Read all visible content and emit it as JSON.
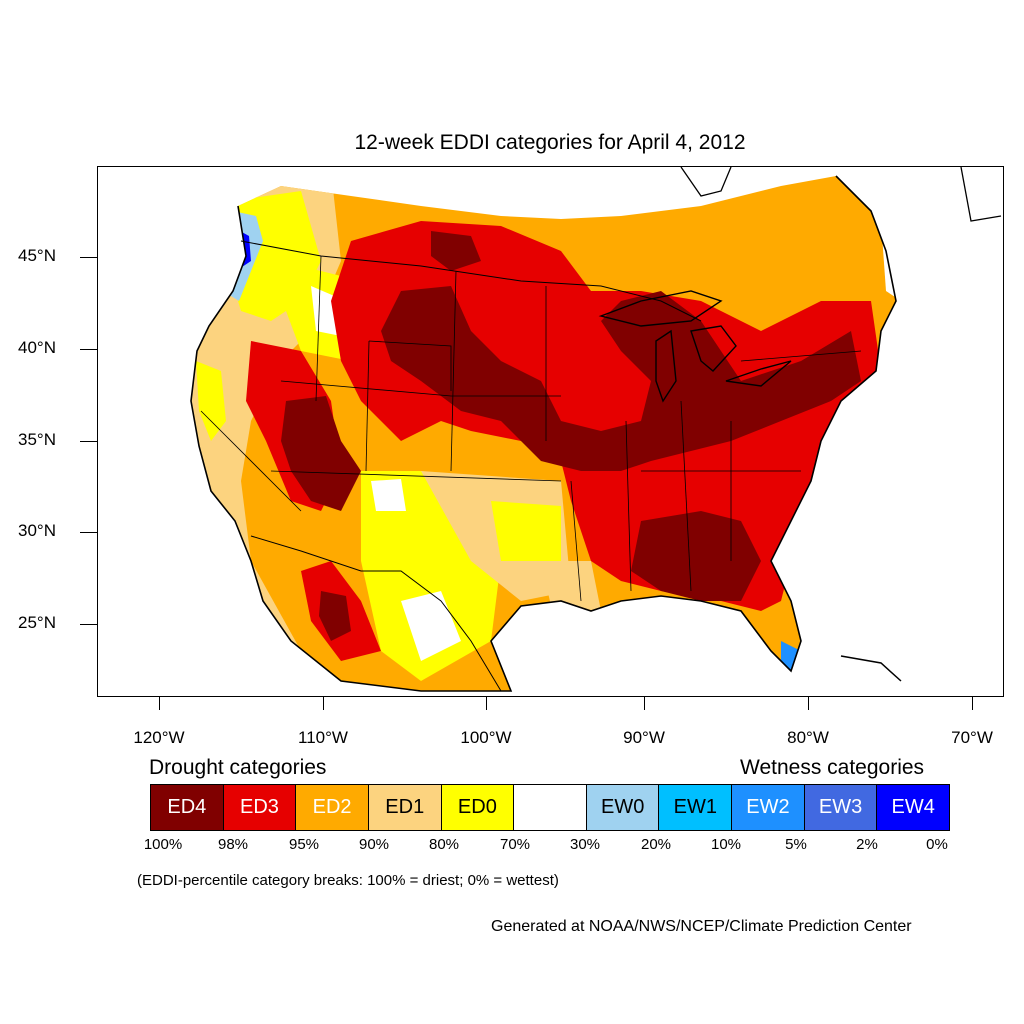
{
  "title": "12-week EDDI categories for April 4, 2012",
  "lat_labels": [
    "45°N",
    "40°N",
    "35°N",
    "30°N",
    "25°N"
  ],
  "lon_labels": [
    "120°W",
    "110°W",
    "100°W",
    "90°W",
    "80°W",
    "70°W"
  ],
  "legend": {
    "drought_title": "Drought categories",
    "wetness_title": "Wetness categories",
    "categories": [
      {
        "label": "ED4",
        "color": "#800000",
        "text_color": "#ffffff"
      },
      {
        "label": "ED3",
        "color": "#e60000",
        "text_color": "#ffffff"
      },
      {
        "label": "ED2",
        "color": "#ffaa00",
        "text_color": "#ffffff"
      },
      {
        "label": "ED1",
        "color": "#fcd37f",
        "text_color": "#000000"
      },
      {
        "label": "ED0",
        "color": "#ffff00",
        "text_color": "#000000"
      },
      {
        "label": "",
        "color": "#ffffff",
        "text_color": "#000000"
      },
      {
        "label": "EW0",
        "color": "#9fd2f0",
        "text_color": "#000000"
      },
      {
        "label": "EW1",
        "color": "#00bfff",
        "text_color": "#000000"
      },
      {
        "label": "EW2",
        "color": "#1e90ff",
        "text_color": "#ffffff"
      },
      {
        "label": "EW3",
        "color": "#4169e1",
        "text_color": "#ffffff"
      },
      {
        "label": "EW4",
        "color": "#0000ff",
        "text_color": "#ffffff"
      }
    ],
    "percentiles": [
      "100%",
      "98%",
      "95%",
      "90%",
      "80%",
      "70%",
      "30%",
      "20%",
      "10%",
      "5%",
      "2%",
      "0%"
    ]
  },
  "note": "(EDDI-percentile category breaks: 100% = driest; 0% = wettest)",
  "credit": "Generated at NOAA/NWS/NCEP/Climate Prediction Center"
}
